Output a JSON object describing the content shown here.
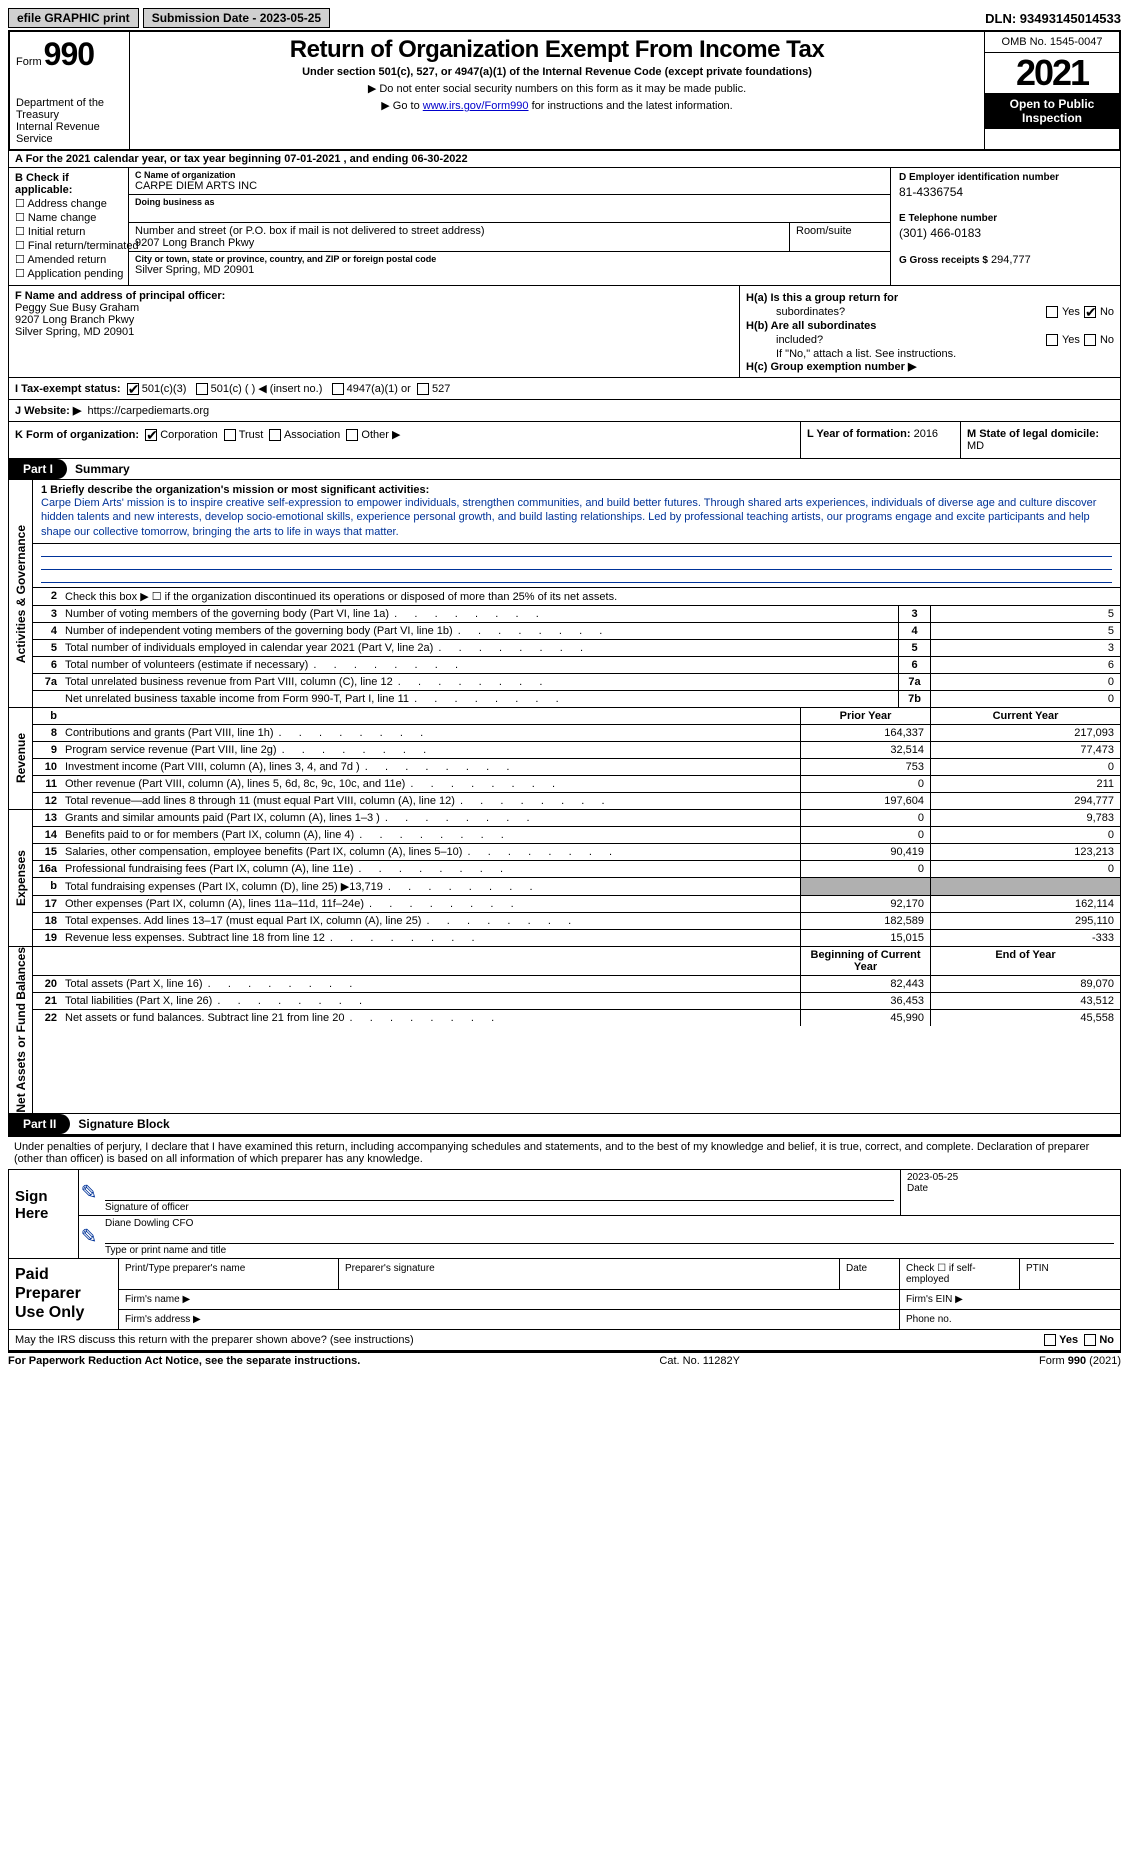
{
  "topbar": {
    "efile": "efile GRAPHIC print",
    "submission": "Submission Date - 2023-05-25",
    "dln": "DLN: 93493145014533"
  },
  "header": {
    "form_word": "Form",
    "form_num": "990",
    "dept": "Department of the Treasury",
    "irs": "Internal Revenue Service",
    "title": "Return of Organization Exempt From Income Tax",
    "sub1": "Under section 501(c), 527, or 4947(a)(1) of the Internal Revenue Code (except private foundations)",
    "sub2": "▶ Do not enter social security numbers on this form as it may be made public.",
    "sub3a": "▶ Go to ",
    "sub3_link": "www.irs.gov/Form990",
    "sub3b": " for instructions and the latest information.",
    "omb": "OMB No. 1545-0047",
    "year": "2021",
    "open": "Open to Public Inspection"
  },
  "line_a": "A For the 2021 calendar year, or tax year beginning 07-01-2021    , and ending 06-30-2022",
  "box_b": {
    "title": "B Check if applicable:",
    "opts": [
      "Address change",
      "Name change",
      "Initial return",
      "Final return/terminated",
      "Amended return",
      "Application pending"
    ]
  },
  "box_c": {
    "name_lbl": "C Name of organization",
    "name": "CARPE DIEM ARTS INC",
    "dba_lbl": "Doing business as",
    "dba": "",
    "street_lbl": "Number and street (or P.O. box if mail is not delivered to street address)",
    "street": "9207 Long Branch Pkwy",
    "room_lbl": "Room/suite",
    "room": "",
    "city_lbl": "City or town, state or province, country, and ZIP or foreign postal code",
    "city": "Silver Spring, MD  20901"
  },
  "box_d": {
    "ein_lbl": "D Employer identification number",
    "ein": "81-4336754",
    "tel_lbl": "E Telephone number",
    "tel": "(301) 466-0183",
    "gross_lbl": "G Gross receipts $",
    "gross": "294,777"
  },
  "box_f": {
    "lbl": "F  Name and address of principal officer:",
    "name": "Peggy Sue Busy Graham",
    "addr1": "9207 Long Branch Pkwy",
    "addr2": "Silver Spring, MD  20901"
  },
  "box_h": {
    "ha1": "H(a)  Is this a group return for",
    "ha2": "subordinates?",
    "hb1": "H(b)  Are all subordinates",
    "hb2": "included?",
    "hb3": "If \"No,\" attach a list. See instructions.",
    "hc": "H(c)  Group exemption number ▶",
    "yes": "Yes",
    "no": "No"
  },
  "row_i": {
    "lbl": "I    Tax-exempt status:",
    "opt1": "501(c)(3)",
    "opt2": "501(c) (  ) ◀ (insert no.)",
    "opt3": "4947(a)(1) or",
    "opt4": "527"
  },
  "row_j": {
    "lbl": "J   Website: ▶",
    "url": "https://carpediemarts.org"
  },
  "row_k": {
    "lbl": "K Form of organization:",
    "opts": [
      "Corporation",
      "Trust",
      "Association",
      "Other ▶"
    ]
  },
  "row_l": {
    "lbl": "L Year of formation:",
    "val": "2016"
  },
  "row_m": {
    "lbl": "M State of legal domicile:",
    "val": "MD"
  },
  "part1": {
    "lbl": "Part I",
    "title": "Summary"
  },
  "mission": {
    "lbl": "1  Briefly describe the organization's mission or most significant activities:",
    "text": "Carpe Diem Arts' mission is to inspire creative self-expression to empower individuals, strengthen communities, and build better futures. Through shared arts experiences, individuals of diverse age and culture discover hidden talents and new interests, develop socio-emotional skills, experience personal growth, and build lasting relationships. Led by professional teaching artists, our programs engage and excite participants and help shape our collective tomorrow, bringing the arts to life in ways that matter."
  },
  "vtabs": {
    "act": "Activities & Governance",
    "rev": "Revenue",
    "exp": "Expenses",
    "net": "Net Assets or Fund Balances"
  },
  "lines_gov": [
    {
      "n": "2",
      "t": "Check this box ▶ ☐  if the organization discontinued its operations or disposed of more than 25% of its net assets.",
      "box": "",
      "v": ""
    },
    {
      "n": "3",
      "t": "Number of voting members of the governing body (Part VI, line 1a)",
      "box": "3",
      "v": "5"
    },
    {
      "n": "4",
      "t": "Number of independent voting members of the governing body (Part VI, line 1b)",
      "box": "4",
      "v": "5"
    },
    {
      "n": "5",
      "t": "Total number of individuals employed in calendar year 2021 (Part V, line 2a)",
      "box": "5",
      "v": "3"
    },
    {
      "n": "6",
      "t": "Total number of volunteers (estimate if necessary)",
      "box": "6",
      "v": "6"
    },
    {
      "n": "7a",
      "t": "Total unrelated business revenue from Part VIII, column (C), line 12",
      "box": "7a",
      "v": "0"
    },
    {
      "n": "",
      "t": "Net unrelated business taxable income from Form 990-T, Part I, line 11",
      "box": "7b",
      "v": "0"
    }
  ],
  "two_col_hdr": {
    "b": "b",
    "prior": "Prior Year",
    "curr": "Current Year"
  },
  "lines_rev": [
    {
      "n": "8",
      "t": "Contributions and grants (Part VIII, line 1h)",
      "p": "164,337",
      "c": "217,093"
    },
    {
      "n": "9",
      "t": "Program service revenue (Part VIII, line 2g)",
      "p": "32,514",
      "c": "77,473"
    },
    {
      "n": "10",
      "t": "Investment income (Part VIII, column (A), lines 3, 4, and 7d )",
      "p": "753",
      "c": "0"
    },
    {
      "n": "11",
      "t": "Other revenue (Part VIII, column (A), lines 5, 6d, 8c, 9c, 10c, and 11e)",
      "p": "0",
      "c": "211"
    },
    {
      "n": "12",
      "t": "Total revenue—add lines 8 through 11 (must equal Part VIII, column (A), line 12)",
      "p": "197,604",
      "c": "294,777"
    }
  ],
  "lines_exp": [
    {
      "n": "13",
      "t": "Grants and similar amounts paid (Part IX, column (A), lines 1–3 )",
      "p": "0",
      "c": "9,783"
    },
    {
      "n": "14",
      "t": "Benefits paid to or for members (Part IX, column (A), line 4)",
      "p": "0",
      "c": "0"
    },
    {
      "n": "15",
      "t": "Salaries, other compensation, employee benefits (Part IX, column (A), lines 5–10)",
      "p": "90,419",
      "c": "123,213"
    },
    {
      "n": "16a",
      "t": "Professional fundraising fees (Part IX, column (A), line 11e)",
      "p": "0",
      "c": "0"
    },
    {
      "n": "b",
      "t": "Total fundraising expenses (Part IX, column (D), line 25) ▶13,719",
      "p": "__GRAY__",
      "c": "__GRAY__"
    },
    {
      "n": "17",
      "t": "Other expenses (Part IX, column (A), lines 11a–11d, 11f–24e)",
      "p": "92,170",
      "c": "162,114"
    },
    {
      "n": "18",
      "t": "Total expenses. Add lines 13–17 (must equal Part IX, column (A), line 25)",
      "p": "182,589",
      "c": "295,110"
    },
    {
      "n": "19",
      "t": "Revenue less expenses. Subtract line 18 from line 12",
      "p": "15,015",
      "c": "-333"
    }
  ],
  "net_hdr": {
    "b": "Beginning of Current Year",
    "e": "End of Year"
  },
  "lines_net": [
    {
      "n": "20",
      "t": "Total assets (Part X, line 16)",
      "p": "82,443",
      "c": "89,070"
    },
    {
      "n": "21",
      "t": "Total liabilities (Part X, line 26)",
      "p": "36,453",
      "c": "43,512"
    },
    {
      "n": "22",
      "t": "Net assets or fund balances. Subtract line 21 from line 20",
      "p": "45,990",
      "c": "45,558"
    }
  ],
  "part2": {
    "lbl": "Part II",
    "title": "Signature Block"
  },
  "sig_decl": "Under penalties of perjury, I declare that I have examined this return, including accompanying schedules and statements, and to the best of my knowledge and belief, it is true, correct, and complete. Declaration of preparer (other than officer) is based on all information of which preparer has any knowledge.",
  "sign": {
    "here": "Sign Here",
    "sig_of": "Signature of officer",
    "date": "Date",
    "date_val": "2023-05-25",
    "name": "Diane Dowling CFO",
    "name_lbl": "Type or print name and title"
  },
  "prep": {
    "lbl": "Paid Preparer Use Only",
    "c1": "Print/Type preparer's name",
    "c2": "Preparer's signature",
    "c3": "Date",
    "c4": "Check ☐ if self-employed",
    "c5": "PTIN",
    "firm_name": "Firm's name   ▶",
    "firm_ein": "Firm's EIN ▶",
    "firm_addr": "Firm's address ▶",
    "phone": "Phone no."
  },
  "discuss": {
    "txt": "May the IRS discuss this return with the preparer shown above? (see instructions)",
    "yes": "Yes",
    "no": "No"
  },
  "footer": {
    "left": "For Paperwork Reduction Act Notice, see the separate instructions.",
    "mid": "Cat. No. 11282Y",
    "right": "Form 990 (2021)"
  }
}
